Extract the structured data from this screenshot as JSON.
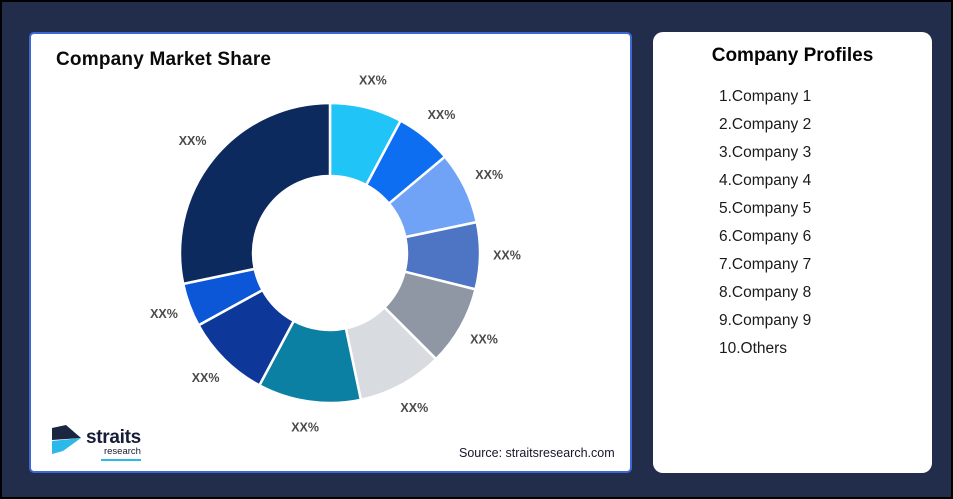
{
  "page": {
    "background_color": "#212D4B",
    "border_color": "#000000"
  },
  "left_card": {
    "title": "Company Market Share",
    "source": "Source: straitsresearch.com",
    "border_color": "#3D68D4"
  },
  "logo": {
    "name": "straits",
    "sub": "research",
    "navy_color": "#1B2740",
    "cyan_color": "#2BB9E9"
  },
  "chart_data": {
    "type": "donut",
    "title": "Company Market Share",
    "inner_radius_ratio": 0.513,
    "start_angle_deg": 0,
    "label_color": "#4a4a4a",
    "segments": [
      {
        "label": "XX%",
        "value": 7.8,
        "color": "#20C4F6"
      },
      {
        "label": "XX%",
        "value": 6.1,
        "color": "#0D6EF1"
      },
      {
        "label": "XX%",
        "value": 7.8,
        "color": "#70A3F5"
      },
      {
        "label": "XX%",
        "value": 7.2,
        "color": "#4E74C4"
      },
      {
        "label": "XX%",
        "value": 8.6,
        "color": "#9097A4"
      },
      {
        "label": "XX%",
        "value": 9.2,
        "color": "#D8DBDF"
      },
      {
        "label": "XX%",
        "value": 11.1,
        "color": "#0B80A2"
      },
      {
        "label": "XX%",
        "value": 9.2,
        "color": "#0D3899"
      },
      {
        "label": "XX%",
        "value": 4.7,
        "color": "#0B57D8"
      },
      {
        "label": "XX%",
        "value": 28.3,
        "color": "#0D2A5E"
      }
    ]
  },
  "right_card": {
    "title": "Company Profiles",
    "items": [
      "1.Company 1",
      "2.Company 2",
      "3.Company 3",
      "4.Company 4",
      "5.Company 5",
      "6.Company 6",
      "7.Company 7",
      "8.Company 8",
      "9.Company 9",
      "10.Others"
    ]
  }
}
